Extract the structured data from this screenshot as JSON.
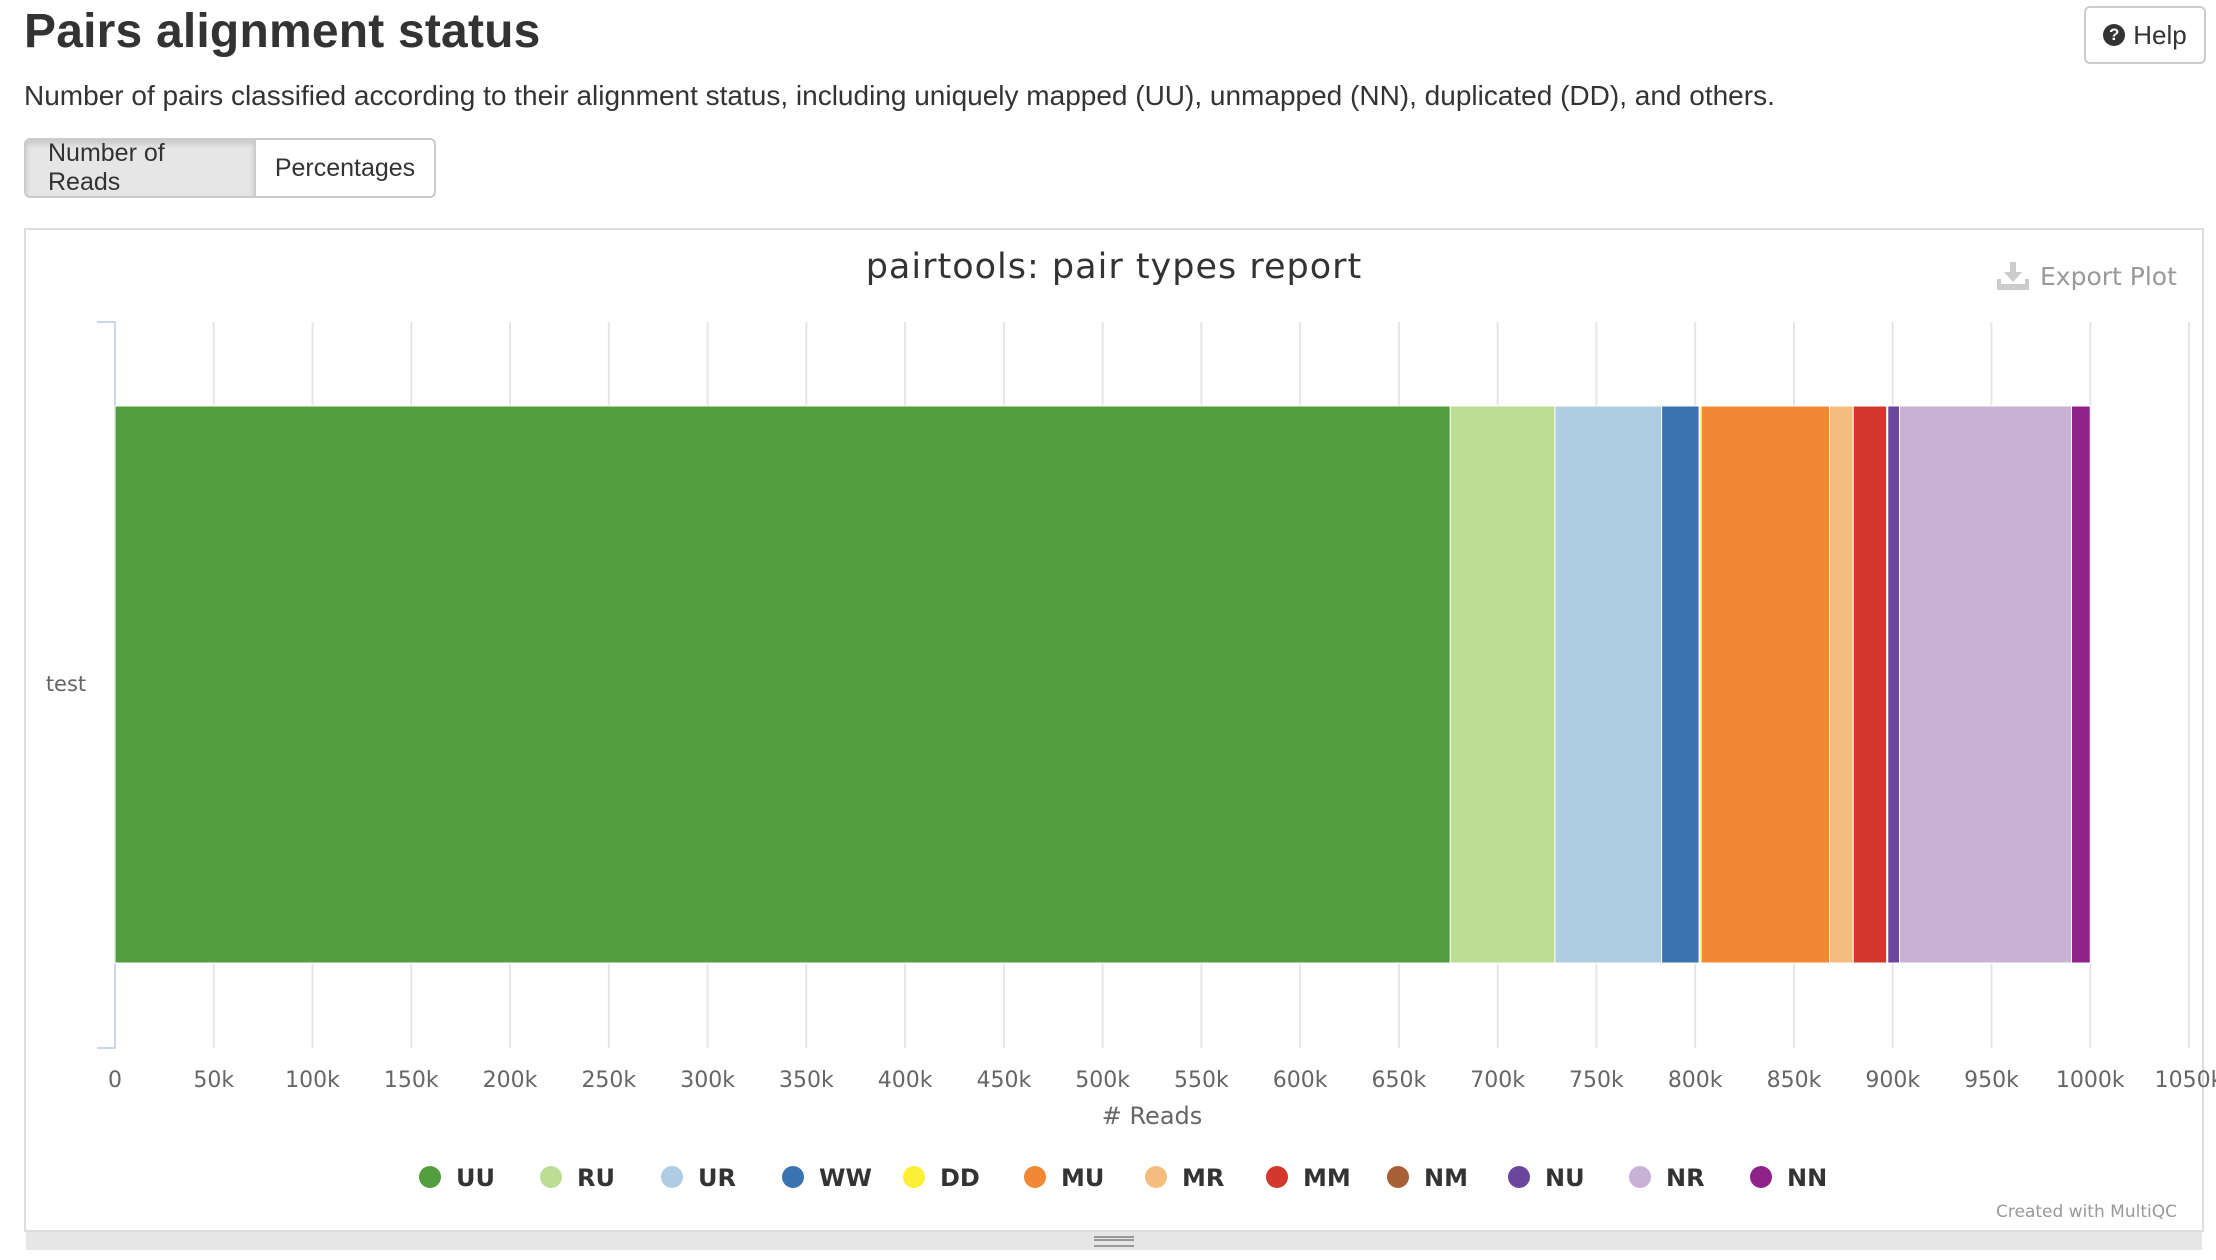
{
  "header": {
    "title": "Pairs alignment status",
    "description": "Number of pairs classified according to their alignment status, including uniquely mapped (UU), unmapped (NN), duplicated (DD), and others.",
    "help_label": "Help"
  },
  "toggle": {
    "reads_label": "Number of Reads",
    "percent_label": "Percentages"
  },
  "plot": {
    "export_label": "Export Plot",
    "credits": "Created with MultiQC"
  },
  "colors": {
    "UU": "#539e3e",
    "RU": "#bcde94",
    "UR": "#afcde2",
    "WW": "#3a74b0",
    "DD": "#fbf035",
    "MU": "#f08834",
    "MR": "#f6bc7d",
    "MM": "#d2382c",
    "NM": "#a75f35",
    "NU": "#6a469c",
    "NR": "#c7b2d6",
    "NN": "#8e2389"
  },
  "chart_data": {
    "type": "bar",
    "orientation": "horizontal",
    "stacked": true,
    "title": "pairtools: pair types report",
    "xlabel": "# Reads",
    "ylabel": "",
    "xlim": [
      0,
      1050000
    ],
    "x_ticks": [
      0,
      50000,
      100000,
      150000,
      200000,
      250000,
      300000,
      350000,
      400000,
      450000,
      500000,
      550000,
      600000,
      650000,
      700000,
      750000,
      800000,
      850000,
      900000,
      950000,
      1000000,
      1050000
    ],
    "x_tick_labels": [
      "0",
      "50k",
      "100k",
      "150k",
      "200k",
      "250k",
      "300k",
      "350k",
      "400k",
      "450k",
      "500k",
      "550k",
      "600k",
      "650k",
      "700k",
      "750k",
      "800k",
      "850k",
      "900k",
      "950k",
      "1000k",
      "1050k"
    ],
    "categories": [
      "test"
    ],
    "legend_position": "bottom-center",
    "series": [
      {
        "name": "UU",
        "values": [
          676000
        ]
      },
      {
        "name": "RU",
        "values": [
          53000
        ]
      },
      {
        "name": "UR",
        "values": [
          54000
        ]
      },
      {
        "name": "WW",
        "values": [
          19000
        ]
      },
      {
        "name": "DD",
        "values": [
          1000
        ]
      },
      {
        "name": "MU",
        "values": [
          65000
        ]
      },
      {
        "name": "MR",
        "values": [
          12000
        ]
      },
      {
        "name": "MM",
        "values": [
          17000
        ]
      },
      {
        "name": "NM",
        "values": [
          500
        ]
      },
      {
        "name": "NU",
        "values": [
          6000
        ]
      },
      {
        "name": "NR",
        "values": [
          87000
        ]
      },
      {
        "name": "NN",
        "values": [
          9500
        ]
      }
    ]
  }
}
